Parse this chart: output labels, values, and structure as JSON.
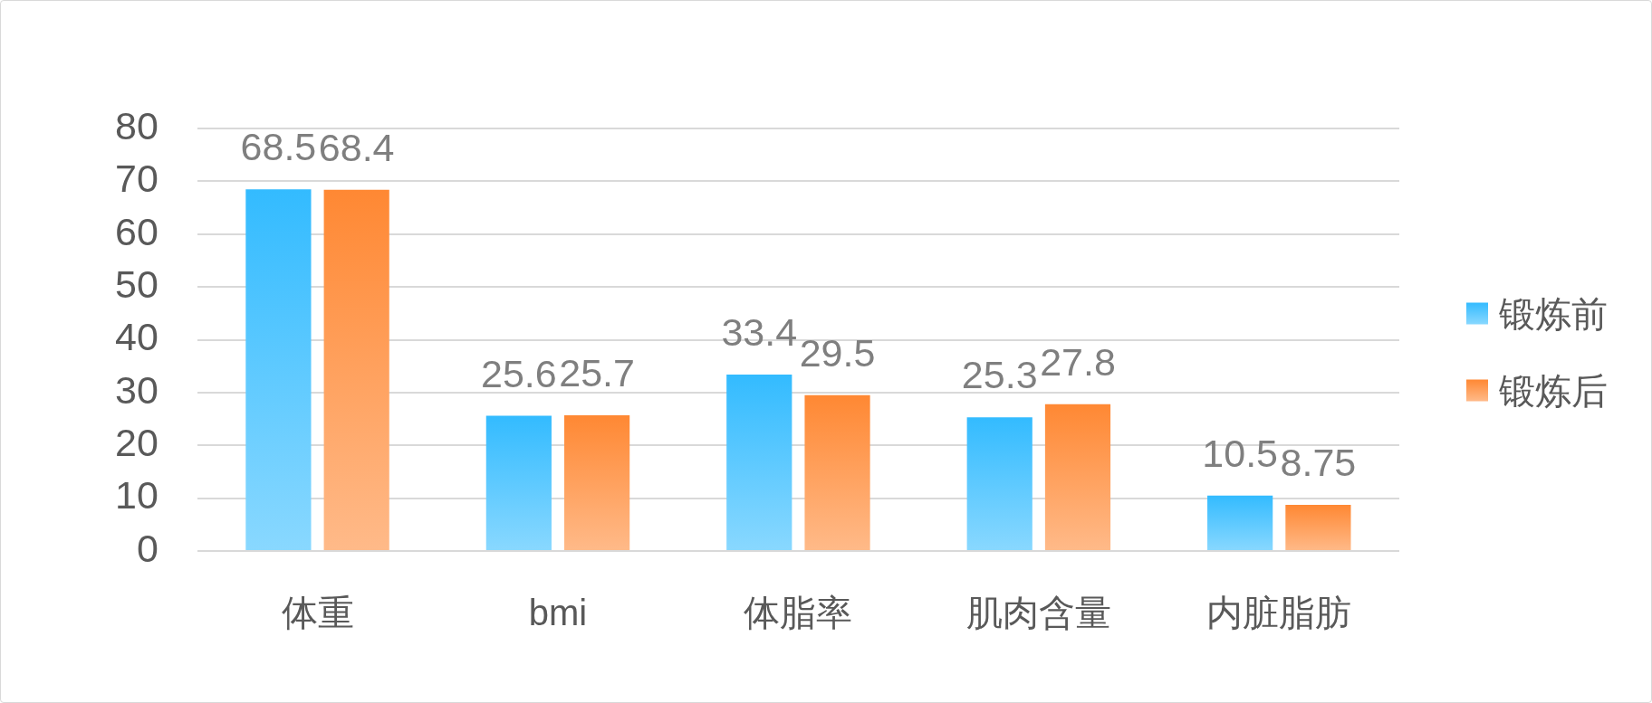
{
  "chart_data": {
    "type": "bar",
    "categories": [
      "体重",
      "bmi",
      "体脂率",
      "肌肉含量",
      "内脏脂肪"
    ],
    "series": [
      {
        "name": "锻炼前",
        "color": "#33bbff",
        "values": [
          68.5,
          25.6,
          33.4,
          25.3,
          10.5
        ]
      },
      {
        "name": "锻炼后",
        "color": "#ff8833",
        "values": [
          68.4,
          25.7,
          29.5,
          27.8,
          8.75
        ]
      }
    ],
    "ylim": [
      0,
      80
    ],
    "yticks": [
      0,
      10,
      20,
      30,
      40,
      50,
      60,
      70,
      80
    ],
    "grid": "y",
    "legend": "right",
    "data_labels": true
  }
}
